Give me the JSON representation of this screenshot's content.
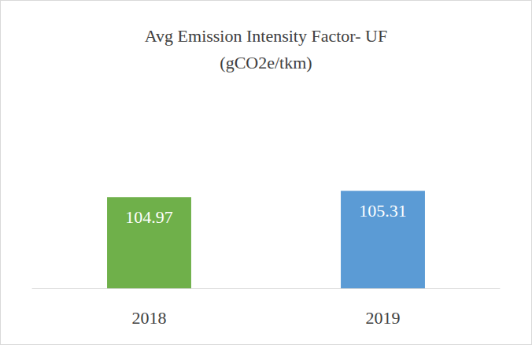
{
  "chart_data": {
    "type": "bar",
    "title": "Avg Emission Intensity Factor- UF\n(gCO2e/tkm)",
    "categories": [
      "2018",
      "2019"
    ],
    "values": [
      104.97,
      105.31
    ],
    "colors": [
      "#6fb04a",
      "#5b9bd5"
    ],
    "ylim": [
      100,
      110
    ],
    "yticks": [
      100,
      105,
      110
    ],
    "grid": false,
    "data_labels": true,
    "tick_labels": "x"
  }
}
